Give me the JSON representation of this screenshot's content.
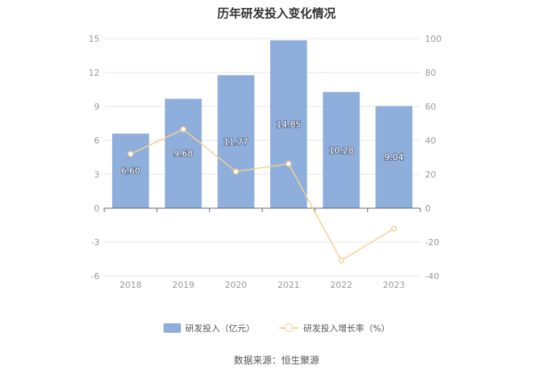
{
  "title": "历年研发投入变化情况",
  "source": "数据来源：恒生聚源",
  "colors": {
    "bar": "#8eaedc",
    "line": "#f5cf94",
    "grid": "#e6e6e6",
    "axis": "#666666",
    "tick": "#999999"
  },
  "chart_data": {
    "type": "bar",
    "categories": [
      "2018",
      "2019",
      "2020",
      "2021",
      "2022",
      "2023"
    ],
    "series": [
      {
        "name": "研发投入（亿元）",
        "type": "bar",
        "axis": "left",
        "values": [
          6.6,
          9.68,
          11.77,
          14.85,
          10.28,
          9.04
        ],
        "labels": [
          "6.60",
          "9.68",
          "11.77",
          "14.85",
          "10.28",
          "9.04"
        ]
      },
      {
        "name": "研发投入增长率（%）",
        "type": "line",
        "axis": "right",
        "values": [
          32,
          46.5,
          21.6,
          26.2,
          -30.8,
          -12.1
        ]
      }
    ],
    "y_left": {
      "min": -6,
      "max": 15,
      "ticks": [
        -6,
        -3,
        0,
        3,
        6,
        9,
        12,
        15
      ]
    },
    "y_right": {
      "min": -40,
      "max": 100,
      "ticks": [
        -40,
        -20,
        0,
        20,
        40,
        60,
        80,
        100
      ]
    },
    "grid": true,
    "legend": "bottom-center"
  }
}
